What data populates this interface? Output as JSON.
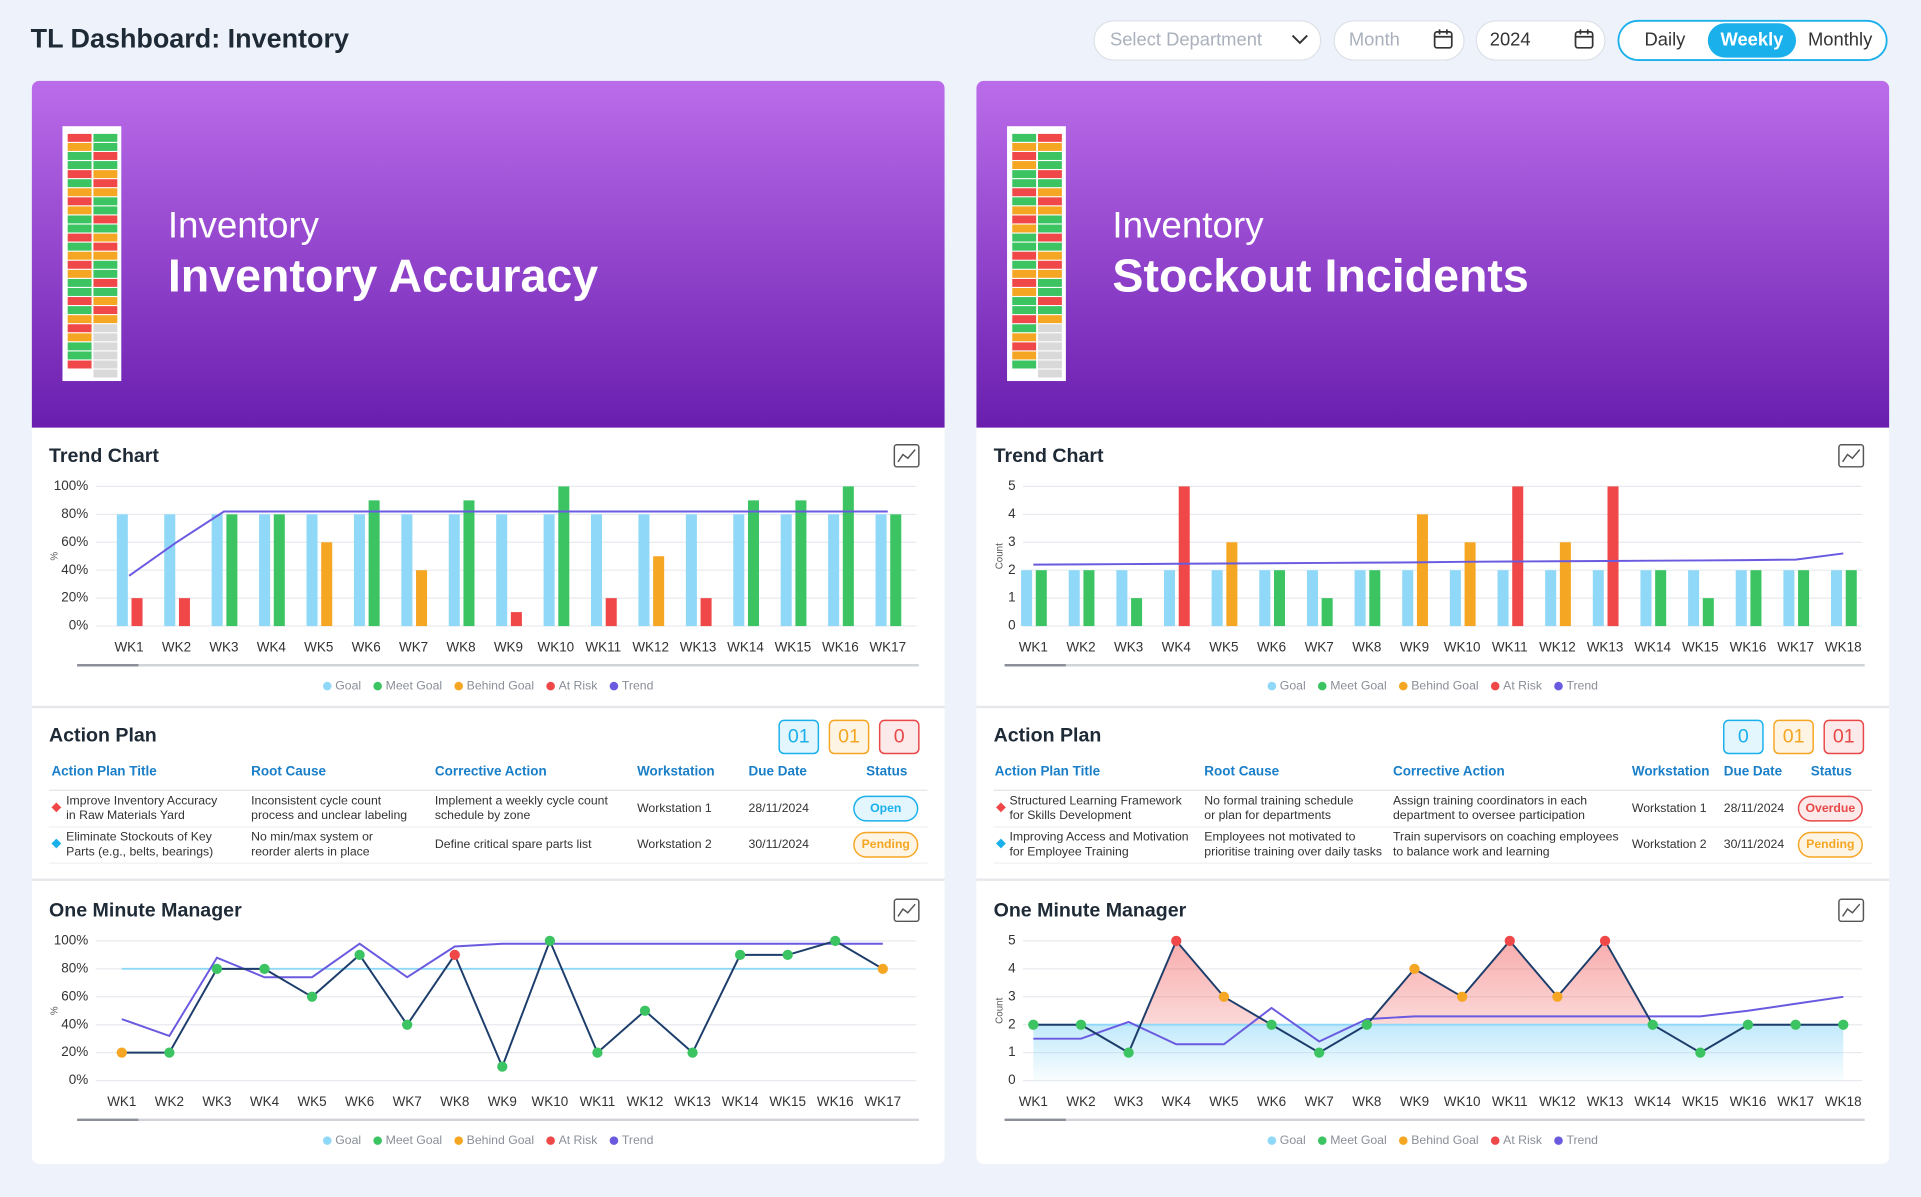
{
  "header": {
    "title": "TL Dashboard: Inventory",
    "department_placeholder": "Select Department",
    "month_placeholder": "Month",
    "year": "2024",
    "periods": [
      "Daily",
      "Weekly",
      "Monthly"
    ],
    "active_period_index": 1
  },
  "panels": [
    {
      "banner": {
        "category": "Inventory",
        "title": "Inventory Accuracy"
      },
      "trend_chart": {
        "type": "bar",
        "title": "Trend Chart",
        "y_label": "%",
        "categories": [
          "WK1",
          "WK2",
          "WK3",
          "WK4",
          "WK5",
          "WK6",
          "WK7",
          "WK8",
          "WK9",
          "WK10",
          "WK11",
          "WK12",
          "WK13",
          "WK14",
          "WK15",
          "WK16",
          "WK17"
        ],
        "ylim": [
          0,
          100
        ],
        "yticks": [
          {
            "value": 0,
            "label": "0%"
          },
          {
            "value": 20,
            "label": "20%"
          },
          {
            "value": 40,
            "label": "40%"
          },
          {
            "value": 60,
            "label": "60%"
          },
          {
            "value": 80,
            "label": "80%"
          },
          {
            "value": 100,
            "label": "100%"
          }
        ],
        "series": [
          {
            "name": "Goal",
            "color": "#8fd8f8",
            "style": "bar-left",
            "values": [
              80,
              80,
              80,
              80,
              80,
              80,
              80,
              80,
              80,
              80,
              80,
              80,
              80,
              80,
              80,
              80,
              80
            ]
          },
          {
            "name": "Meet Goal",
            "color": "#3cc463",
            "style": "bar-right",
            "values": [
              null,
              null,
              80,
              80,
              null,
              90,
              null,
              90,
              null,
              100,
              null,
              null,
              null,
              90,
              90,
              100,
              80
            ]
          },
          {
            "name": "Behind Goal",
            "color": "#f5a623",
            "style": "bar-right",
            "values": [
              null,
              null,
              null,
              null,
              60,
              null,
              40,
              null,
              null,
              null,
              null,
              50,
              null,
              null,
              null,
              null,
              null
            ]
          },
          {
            "name": "At Risk",
            "color": "#f04848",
            "style": "bar-right",
            "values": [
              20,
              20,
              null,
              null,
              null,
              null,
              null,
              null,
              10,
              null,
              20,
              null,
              20,
              null,
              null,
              null,
              null
            ]
          },
          {
            "name": "Trend",
            "color": "#6a5ae0",
            "style": "line",
            "values": [
              36,
              60,
              82,
              82,
              82,
              82,
              82,
              82,
              82,
              82,
              82,
              82,
              82,
              82,
              82,
              82,
              82
            ]
          }
        ]
      },
      "action_plan": {
        "title": "Action Plan",
        "counts": [
          {
            "label": "01",
            "color": "#1ab0ec"
          },
          {
            "label": "01",
            "color": "#f5a623"
          },
          {
            "label": "0",
            "color": "#e84848"
          }
        ],
        "columns": [
          "Action Plan Title",
          "Root Cause",
          "Corrective Action",
          "Workstation",
          "Due Date",
          "Status"
        ],
        "rows": [
          {
            "priority_color": "#f04848",
            "cells": [
              [
                "Improve Inventory Accuracy",
                "in Raw Materials Yard"
              ],
              [
                "Inconsistent cycle count",
                "process and unclear labeling"
              ],
              [
                "Implement a weekly cycle count",
                "schedule by zone"
              ],
              [
                "Workstation 1"
              ],
              [
                "28/11/2024"
              ]
            ],
            "status": "Open",
            "status_color": "#1ab0ec"
          },
          {
            "priority_color": "#1ab0ec",
            "cells": [
              [
                "Eliminate Stockouts of Key",
                "Parts (e.g., belts, bearings)"
              ],
              [
                "No min/max system or",
                "reorder alerts in place"
              ],
              [
                "Define critical spare parts list"
              ],
              [
                "Workstation 2"
              ],
              [
                "30/11/2024"
              ]
            ],
            "status": "Pending",
            "status_color": "#f5a623"
          }
        ]
      },
      "omm_chart": {
        "type": "line",
        "title": "One Minute Manager",
        "y_label": "%",
        "line_color": "#1d3d6b",
        "area": false,
        "categories": [
          "WK1",
          "WK2",
          "WK3",
          "WK4",
          "WK5",
          "WK6",
          "WK7",
          "WK8",
          "WK9",
          "WK10",
          "WK11",
          "WK12",
          "WK13",
          "WK14",
          "WK15",
          "WK16",
          "WK17"
        ],
        "ylim": [
          0,
          100
        ],
        "yticks": [
          {
            "value": 0,
            "label": "0%"
          },
          {
            "value": 20,
            "label": "20%"
          },
          {
            "value": 40,
            "label": "40%"
          },
          {
            "value": 60,
            "label": "60%"
          },
          {
            "value": 80,
            "label": "80%"
          },
          {
            "value": 100,
            "label": "100%"
          }
        ],
        "series": [
          {
            "name": "Goal",
            "color": "#8fd8f8",
            "style": "reference",
            "values": [
              80,
              80,
              80,
              80,
              80,
              80,
              80,
              80,
              80,
              80,
              80,
              80,
              80,
              80,
              80,
              80,
              80
            ]
          },
          {
            "name": "Meet Goal",
            "color": "#3cc463",
            "style": "points",
            "values": [
              null,
              20,
              80,
              80,
              60,
              90,
              40,
              null,
              10,
              100,
              20,
              50,
              20,
              90,
              90,
              100,
              null
            ]
          },
          {
            "name": "Behind Goal",
            "color": "#f5a623",
            "style": "points",
            "values": [
              20,
              null,
              null,
              null,
              null,
              null,
              null,
              null,
              null,
              null,
              null,
              null,
              null,
              null,
              null,
              null,
              80
            ]
          },
          {
            "name": "At Risk",
            "color": "#f04848",
            "style": "points",
            "values": [
              null,
              null,
              null,
              null,
              null,
              null,
              null,
              90,
              null,
              null,
              null,
              null,
              null,
              null,
              null,
              null,
              null
            ]
          },
          {
            "name": "Trend",
            "color": "#6a5ae0",
            "style": "line",
            "values": [
              44,
              32,
              88,
              74,
              74,
              98,
              74,
              96,
              98,
              98,
              98,
              98,
              98,
              98,
              98,
              98,
              98
            ]
          }
        ]
      }
    },
    {
      "banner": {
        "category": "Inventory",
        "title": "Stockout Incidents"
      },
      "trend_chart": {
        "type": "bar",
        "title": "Trend Chart",
        "y_label": "Count",
        "categories": [
          "WK1",
          "WK2",
          "WK3",
          "WK4",
          "WK5",
          "WK6",
          "WK7",
          "WK8",
          "WK9",
          "WK10",
          "WK11",
          "WK12",
          "WK13",
          "WK14",
          "WK15",
          "WK16",
          "WK17",
          "WK18"
        ],
        "ylim": [
          0,
          5
        ],
        "yticks": [
          0,
          1,
          2,
          3,
          4,
          5
        ],
        "series": [
          {
            "name": "Goal",
            "color": "#8fd8f8",
            "style": "bar-left",
            "values": [
              2,
              2,
              2,
              2,
              2,
              2,
              2,
              2,
              2,
              2,
              2,
              2,
              2,
              2,
              2,
              2,
              2,
              2
            ]
          },
          {
            "name": "Meet Goal",
            "color": "#3cc463",
            "style": "bar-right",
            "values": [
              2,
              2,
              1,
              null,
              null,
              2,
              1,
              2,
              null,
              null,
              null,
              null,
              null,
              2,
              1,
              2,
              2,
              2
            ]
          },
          {
            "name": "Behind Goal",
            "color": "#f5a623",
            "style": "bar-right",
            "values": [
              null,
              null,
              null,
              null,
              3,
              null,
              null,
              null,
              4,
              3,
              null,
              3,
              null,
              null,
              null,
              null,
              null,
              null
            ]
          },
          {
            "name": "At Risk",
            "color": "#f04848",
            "style": "bar-right",
            "values": [
              null,
              null,
              null,
              5,
              null,
              null,
              null,
              null,
              null,
              null,
              5,
              null,
              5,
              null,
              null,
              null,
              null,
              null
            ]
          },
          {
            "name": "Trend",
            "color": "#6a5ae0",
            "style": "line",
            "values": [
              2.2,
              2.21,
              2.22,
              2.23,
              2.24,
              2.25,
              2.26,
              2.27,
              2.28,
              2.3,
              2.31,
              2.32,
              2.33,
              2.34,
              2.35,
              2.36,
              2.38,
              2.6
            ]
          }
        ]
      },
      "action_plan": {
        "title": "Action Plan",
        "counts": [
          {
            "label": "0",
            "color": "#1ab0ec"
          },
          {
            "label": "01",
            "color": "#f5a623"
          },
          {
            "label": "01",
            "color": "#e84848"
          }
        ],
        "columns": [
          "Action Plan Title",
          "Root Cause",
          "Corrective Action",
          "Workstation",
          "Due Date",
          "Status"
        ],
        "rows": [
          {
            "priority_color": "#f04848",
            "cells": [
              [
                "Structured Learning Framework",
                "for Skills Development"
              ],
              [
                "No formal training schedule",
                "or plan for departments"
              ],
              [
                "Assign training coordinators in each",
                "department to oversee participation"
              ],
              [
                "Workstation 1"
              ],
              [
                "28/11/2024"
              ]
            ],
            "status": "Overdue",
            "status_color": "#e84848"
          },
          {
            "priority_color": "#1ab0ec",
            "cells": [
              [
                "Improving Access and Motivation",
                "for Employee Training"
              ],
              [
                "Employees not motivated to",
                "prioritise training over daily tasks"
              ],
              [
                "Train supervisors on coaching employees",
                "to balance work and learning"
              ],
              [
                "Workstation 2"
              ],
              [
                "30/11/2024"
              ]
            ],
            "status": "Pending",
            "status_color": "#f5a623"
          }
        ]
      },
      "omm_chart": {
        "type": "line",
        "title": "One Minute Manager",
        "y_label": "Count",
        "line_color": "#1d3d6b",
        "area": true,
        "categories": [
          "WK1",
          "WK2",
          "WK3",
          "WK4",
          "WK5",
          "WK6",
          "WK7",
          "WK8",
          "WK9",
          "WK10",
          "WK11",
          "WK12",
          "WK13",
          "WK14",
          "WK15",
          "WK16",
          "WK17",
          "WK18"
        ],
        "ylim": [
          0,
          5
        ],
        "yticks": [
          0,
          1,
          2,
          3,
          4,
          5
        ],
        "series": [
          {
            "name": "Goal",
            "color": "#8fd8f8",
            "style": "reference",
            "values": [
              2,
              2,
              2,
              2,
              2,
              2,
              2,
              2,
              2,
              2,
              2,
              2,
              2,
              2,
              2,
              2,
              2,
              2
            ]
          },
          {
            "name": "Meet Goal",
            "color": "#3cc463",
            "style": "points",
            "values": [
              2,
              2,
              1,
              null,
              null,
              2,
              1,
              2,
              null,
              null,
              null,
              null,
              null,
              2,
              1,
              2,
              2,
              2
            ]
          },
          {
            "name": "Behind Goal",
            "color": "#f5a623",
            "style": "points",
            "values": [
              null,
              null,
              null,
              null,
              3,
              null,
              null,
              null,
              4,
              3,
              null,
              3,
              null,
              null,
              null,
              null,
              null,
              null
            ]
          },
          {
            "name": "At Risk",
            "color": "#f04848",
            "style": "points",
            "values": [
              null,
              null,
              null,
              5,
              null,
              null,
              null,
              null,
              null,
              null,
              5,
              null,
              5,
              null,
              null,
              null,
              null,
              null
            ]
          },
          {
            "name": "Trend",
            "color": "#6a5ae0",
            "style": "line",
            "values": [
              1.5,
              1.5,
              2.1,
              1.3,
              1.3,
              2.6,
              1.4,
              2.2,
              2.3,
              2.3,
              2.3,
              2.3,
              2.3,
              2.3,
              2.3,
              2.5,
              2.75,
              3.0
            ]
          }
        ]
      }
    }
  ]
}
